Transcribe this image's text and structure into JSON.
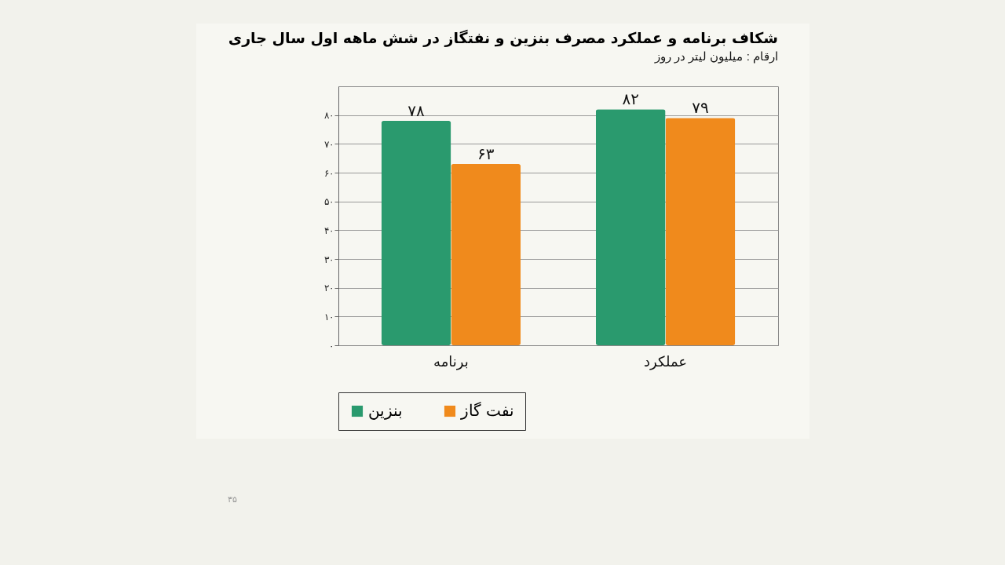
{
  "chart_data": {
    "type": "bar",
    "title": "شکاف برنامه و عملکرد مصرف بنزین و نفتگاز در شش ماهه اول سال جاری",
    "subtitle": "ارقام : میلیون لیتر در روز",
    "categories": [
      "برنامه",
      "عملکرد"
    ],
    "series": [
      {
        "name": "بنزین",
        "color": "#2a9a6e",
        "values": [
          78,
          82
        ],
        "value_labels": [
          "۷۸",
          "۸۲"
        ]
      },
      {
        "name": "نفت گاز",
        "color": "#f08a1c",
        "values": [
          63,
          79
        ],
        "value_labels": [
          "۶۳",
          "۷۹"
        ]
      }
    ],
    "ylim": [
      0,
      90
    ],
    "yticks": [
      {
        "value": 0,
        "label": "۰"
      },
      {
        "value": 10,
        "label": "۱۰"
      },
      {
        "value": 20,
        "label": "۲۰"
      },
      {
        "value": 30,
        "label": "۳۰"
      },
      {
        "value": 40,
        "label": "۴۰"
      },
      {
        "value": 50,
        "label": "۵۰"
      },
      {
        "value": 60,
        "label": "۶۰"
      },
      {
        "value": 70,
        "label": "۷۰"
      },
      {
        "value": 80,
        "label": "۸۰"
      }
    ],
    "grid": "y",
    "legend": "bottom",
    "annotations": [
      "۳۵"
    ]
  }
}
